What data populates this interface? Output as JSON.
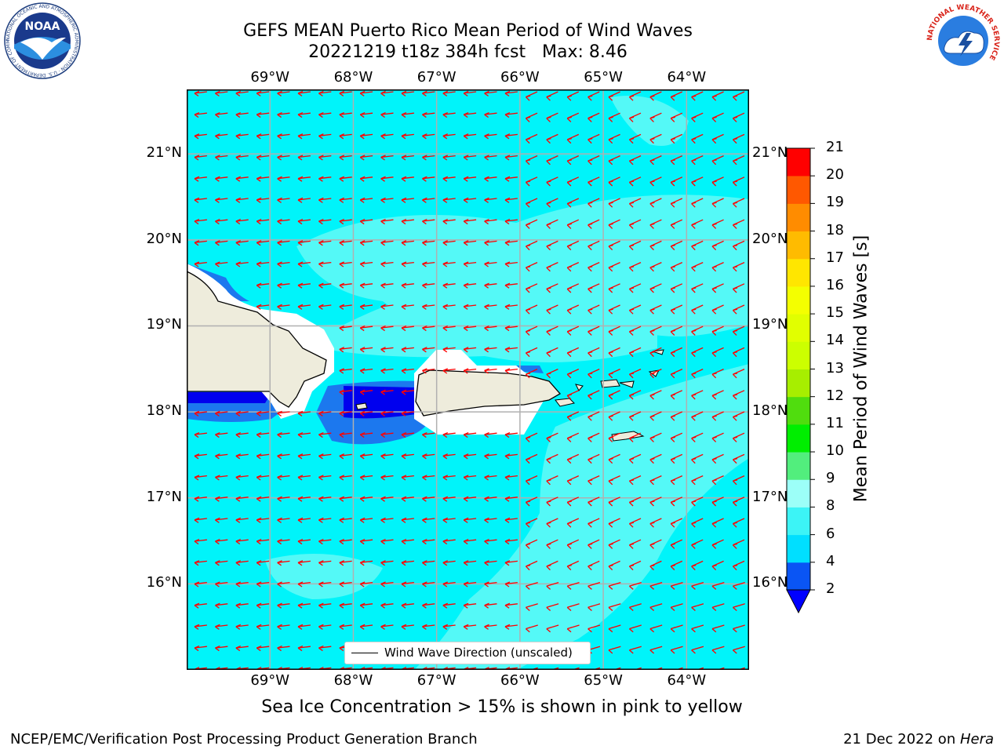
{
  "title": {
    "line1": "GEFS MEAN Puerto Rico Mean Period of Wind Waves",
    "line2": "20221219 t18z 384h fcst   Max: 8.46"
  },
  "map": {
    "lon_ticks": [
      "69°W",
      "68°W",
      "67°W",
      "66°W",
      "65°W",
      "64°W"
    ],
    "lat_ticks": [
      "21°N",
      "20°N",
      "19°N",
      "18°N",
      "17°N",
      "16°N"
    ],
    "lon_values": [
      -69,
      -68,
      -67,
      -66,
      -65,
      -64
    ],
    "lat_values": [
      21,
      20,
      19,
      18,
      17,
      16
    ],
    "extent": {
      "lon_min": -70.0,
      "lon_max": -63.25,
      "lat_min": 15.0,
      "lat_max": 21.75
    },
    "arrow_color": "#ff0000",
    "land_color": "#eeecdc",
    "grid": true
  },
  "legend": {
    "label": "Wind Wave Direction (unscaled)"
  },
  "colorbar": {
    "label": "Mean Period of Wind Waves [s]",
    "ticks": [
      "2",
      "4",
      "6",
      "8",
      "9",
      "10",
      "11",
      "12",
      "13",
      "14",
      "15",
      "16",
      "17",
      "18",
      "19",
      "20",
      "21"
    ],
    "colors": [
      "#0a55f4",
      "#00dfff",
      "#3cf4f6",
      "#9cfff8",
      "#52ee7d",
      "#00ee00",
      "#50dd0e",
      "#a7ee00",
      "#ccff00",
      "#e1ff00",
      "#f4ff00",
      "#ffe600",
      "#ffbb00",
      "#ff8c00",
      "#ff5800",
      "#ff2a00",
      "#ff0000"
    ],
    "extend_color": "#0000ff",
    "field_colors": {
      "p4_6": "#00f4fa",
      "p6_8": "#54f9f7",
      "p2_4": "#1c78ee",
      "below2": "#0000ee"
    }
  },
  "footnote": "Sea Ice Concentration > 15% is shown in pink to yellow",
  "credits": {
    "left": "NCEP/EMC/Verification Post Processing Product Generation Branch",
    "right_prefix": "21 Dec 2022 on ",
    "right_host": "Hera"
  },
  "logos": {
    "noaa": {
      "text": "NOAA",
      "ring_text": "NATIONAL OCEANIC AND ATMOSPHERIC ADMINISTRATION · U.S. DEPARTMENT OF COMMERCE"
    },
    "nws": {
      "ring_text": "NATIONAL WEATHER SERVICE"
    }
  }
}
